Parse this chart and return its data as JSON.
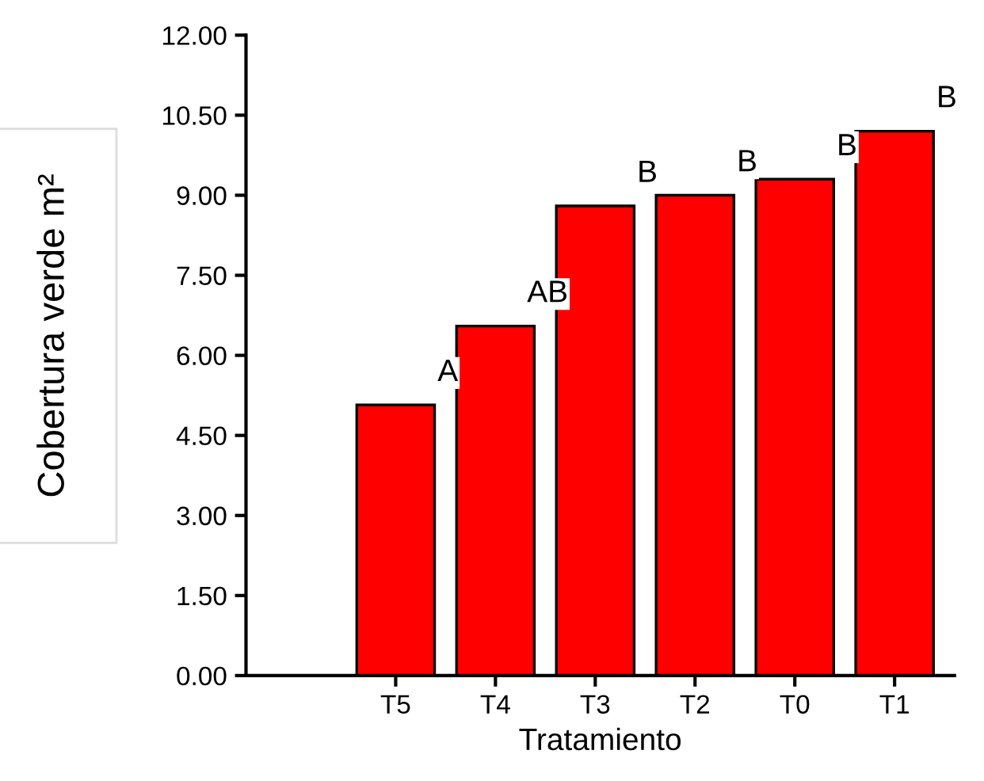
{
  "chart_data": {
    "type": "bar",
    "xlabel": "Tratamiento",
    "ylabel": "Cobertura verde m²",
    "categories": [
      "T5",
      "T4",
      "T3",
      "T2",
      "T0",
      "T1"
    ],
    "values": [
      5.07,
      6.55,
      8.8,
      9.0,
      9.3,
      10.2
    ],
    "color": "#ff0000",
    "ylim": [
      0,
      12
    ],
    "yticks": [
      {
        "value": 0,
        "label": "0.00"
      },
      {
        "value": 1.5,
        "label": "1.50"
      },
      {
        "value": 3,
        "label": "3.00"
      },
      {
        "value": 4.5,
        "label": "4.50"
      },
      {
        "value": 6,
        "label": "6.00"
      },
      {
        "value": 7.5,
        "label": "7.50"
      },
      {
        "value": 9,
        "label": "9.00"
      },
      {
        "value": 10.5,
        "label": "10.50"
      },
      {
        "value": 12,
        "label": "12.00"
      }
    ],
    "annotations": [
      {
        "text": "A",
        "x": "T5",
        "y": 5.07
      },
      {
        "text": "AB",
        "x": "T4",
        "y": 6.55
      },
      {
        "text": "B",
        "x": "T3",
        "y": 8.8
      },
      {
        "text": "B",
        "x": "T2",
        "y": 9.0
      },
      {
        "text": "B",
        "x": "T0",
        "y": 9.3
      },
      {
        "text": "B",
        "x": "T1",
        "y": 10.2
      }
    ],
    "grid": false
  }
}
